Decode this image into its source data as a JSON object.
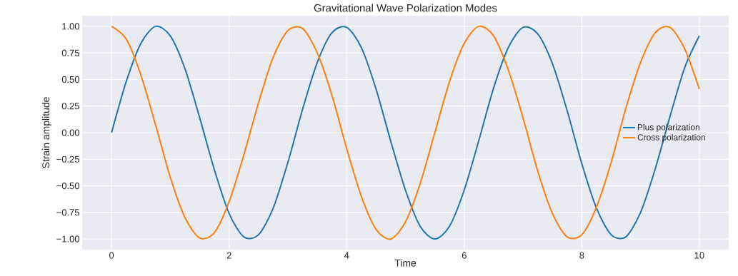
{
  "chart_data": {
    "type": "line",
    "title": "Gravitational Wave Polarization Modes",
    "xlabel": "Time",
    "ylabel": "Strain amplitude",
    "x": [
      0,
      0.25,
      0.5,
      0.75,
      1,
      1.25,
      1.5,
      1.75,
      2,
      2.25,
      2.5,
      2.75,
      3,
      3.25,
      3.5,
      3.75,
      4,
      4.25,
      4.5,
      4.75,
      5,
      5.25,
      5.5,
      5.75,
      6,
      6.25,
      6.5,
      6.75,
      7,
      7.25,
      7.5,
      7.75,
      8,
      8.25,
      8.5,
      8.75,
      9,
      9.25,
      9.5,
      9.75,
      10
    ],
    "series": [
      {
        "name": "Plus polarization",
        "color": "#1f77b4",
        "values": [
          0,
          0.48,
          0.84,
          1.0,
          0.91,
          0.6,
          0.14,
          -0.35,
          -0.76,
          -0.98,
          -0.96,
          -0.71,
          -0.28,
          0.22,
          0.66,
          0.94,
          0.99,
          0.8,
          0.41,
          -0.08,
          -0.54,
          -0.88,
          -1.0,
          -0.88,
          -0.54,
          -0.07,
          0.42,
          0.8,
          0.99,
          0.93,
          0.65,
          0.21,
          -0.29,
          -0.71,
          -0.96,
          -0.98,
          -0.75,
          -0.34,
          0.15,
          0.61,
          0.91
        ]
      },
      {
        "name": "Cross polarization",
        "color": "#ff7f0e",
        "values": [
          1,
          0.88,
          0.54,
          0.07,
          -0.42,
          -0.8,
          -0.99,
          -0.94,
          -0.65,
          -0.21,
          0.28,
          0.71,
          0.96,
          0.98,
          0.75,
          0.35,
          -0.15,
          -0.6,
          -0.91,
          -1.0,
          -0.84,
          -0.48,
          0.0,
          0.48,
          0.84,
          1.0,
          0.91,
          0.59,
          0.14,
          -0.36,
          -0.76,
          -0.98,
          -0.96,
          -0.7,
          -0.28,
          0.23,
          0.66,
          0.94,
          0.99,
          0.79,
          0.41
        ]
      }
    ],
    "xlim": [
      -0.5,
      10.5
    ],
    "ylim": [
      -1.1,
      1.1
    ],
    "xticks": [
      0,
      2,
      4,
      6,
      8,
      10
    ],
    "yticks": [
      {
        "value": -1,
        "label": "−1.00"
      },
      {
        "value": -0.75,
        "label": "−0.75"
      },
      {
        "value": -0.5,
        "label": "−0.50"
      },
      {
        "value": -0.25,
        "label": "−0.25"
      },
      {
        "value": 0,
        "label": "0.00"
      },
      {
        "value": 0.25,
        "label": "0.25"
      },
      {
        "value": 0.5,
        "label": "0.50"
      },
      {
        "value": 0.75,
        "label": "0.75"
      },
      {
        "value": 1,
        "label": "1.00"
      }
    ],
    "grid": true,
    "legend": "right",
    "line_style": "solid",
    "marker": "none"
  }
}
